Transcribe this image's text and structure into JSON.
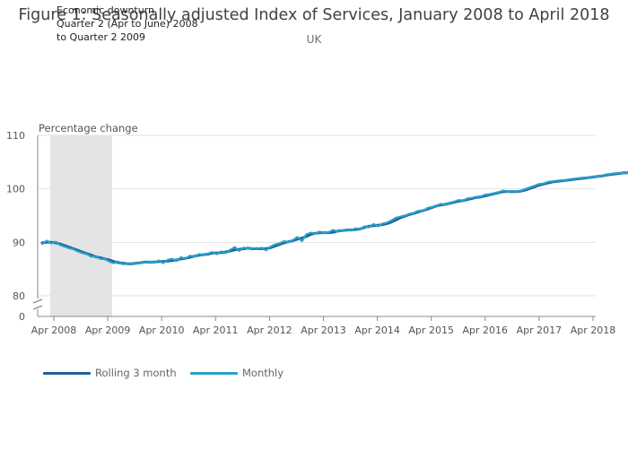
{
  "chart_data": {
    "type": "line",
    "title": "Figure 1: Seasonally adjusted Index of Services, January 2008 to April 2018",
    "subtitle": "UK",
    "ylabel": "Percentage change",
    "xlabel": "",
    "ylim": [
      0,
      110
    ],
    "axis_break": [
      0,
      80
    ],
    "yticks": [
      0,
      80,
      90,
      100,
      110
    ],
    "xticks": [
      "Apr 2008",
      "Apr 2009",
      "Apr 2010",
      "Apr 2011",
      "Apr 2012",
      "Apr 2013",
      "Apr 2014",
      "Apr 2015",
      "Apr 2016",
      "Apr 2017",
      "Apr 2018"
    ],
    "grid": true,
    "legend_position": "bottom-left",
    "shaded_region": {
      "from": "Apr 2008",
      "to": "Jun 2009",
      "label_lines": [
        "Economic downturn",
        "Quarter 2 (Apr to June) 2008",
        "to Quarter 2 2009"
      ]
    },
    "x_start": "Jan 2008",
    "x_end": "Apr 2018",
    "series": [
      {
        "name": "Rolling 3 month",
        "color": "#206095",
        "values": [
          89.9,
          90.0,
          90.0,
          89.9,
          89.7,
          89.4,
          89.1,
          88.8,
          88.5,
          88.2,
          87.9,
          87.6,
          87.3,
          87.1,
          86.9,
          86.7,
          86.4,
          86.2,
          86.1,
          86.0,
          86.0,
          86.1,
          86.2,
          86.3,
          86.3,
          86.3,
          86.4,
          86.4,
          86.5,
          86.6,
          86.7,
          86.9,
          87.0,
          87.2,
          87.4,
          87.6,
          87.7,
          87.8,
          88.0,
          88.0,
          88.1,
          88.2,
          88.4,
          88.6,
          88.7,
          88.8,
          88.9,
          88.8,
          88.8,
          88.8,
          88.8,
          89.0,
          89.3,
          89.6,
          89.9,
          90.1,
          90.3,
          90.6,
          90.8,
          91.1,
          91.5,
          91.7,
          91.8,
          91.8,
          91.8,
          91.9,
          92.1,
          92.2,
          92.3,
          92.3,
          92.4,
          92.5,
          92.8,
          93.0,
          93.1,
          93.2,
          93.3,
          93.5,
          93.8,
          94.2,
          94.6,
          94.9,
          95.2,
          95.4,
          95.7,
          95.9,
          96.2,
          96.5,
          96.8,
          97.0,
          97.1,
          97.3,
          97.5,
          97.7,
          97.8,
          98.0,
          98.2,
          98.4,
          98.5,
          98.7,
          98.9,
          99.1,
          99.3,
          99.5,
          99.5,
          99.5,
          99.5,
          99.6,
          99.8,
          100.1,
          100.4,
          100.7,
          100.9,
          101.1,
          101.3,
          101.4,
          101.5,
          101.6,
          101.7,
          101.8,
          101.9,
          102.0,
          102.1,
          102.2,
          102.3,
          102.4,
          102.6,
          102.7,
          102.8,
          102.9,
          103.0,
          103.0,
          103.1,
          103.1,
          103.2
        ]
      },
      {
        "name": "Monthly",
        "color": "#27a0cc",
        "values": [
          89.7,
          90.3,
          89.8,
          90.1,
          89.5,
          89.2,
          88.9,
          88.7,
          88.3,
          88.0,
          87.8,
          87.3,
          87.4,
          86.9,
          86.9,
          86.4,
          86.1,
          86.4,
          85.9,
          86.0,
          86.1,
          86.0,
          86.3,
          86.2,
          86.4,
          86.2,
          86.6,
          86.1,
          86.7,
          86.9,
          86.5,
          87.2,
          86.9,
          87.5,
          87.3,
          87.8,
          87.6,
          87.9,
          88.2,
          87.8,
          88.3,
          88.0,
          88.6,
          89.1,
          88.4,
          89.0,
          88.8,
          88.9,
          88.7,
          89.0,
          88.5,
          89.2,
          89.6,
          89.8,
          90.2,
          90.0,
          90.4,
          91.0,
          90.2,
          91.5,
          91.8,
          91.6,
          92.0,
          91.7,
          91.9,
          92.3,
          92.0,
          92.2,
          92.4,
          92.2,
          92.6,
          92.5,
          93.0,
          92.8,
          93.4,
          93.0,
          93.5,
          93.7,
          94.1,
          94.6,
          94.8,
          95.0,
          95.3,
          95.5,
          95.9,
          95.8,
          96.4,
          96.6,
          96.8,
          97.2,
          97.0,
          97.4,
          97.6,
          97.9,
          97.8,
          98.2,
          98.3,
          98.5,
          98.6,
          98.9,
          99.0,
          99.2,
          99.4,
          99.7,
          99.4,
          99.6,
          99.5,
          99.7,
          100.0,
          100.3,
          100.6,
          100.9,
          101.0,
          101.3,
          101.4,
          101.5,
          101.6,
          101.6,
          101.8,
          101.9,
          102.0,
          102.1,
          102.1,
          102.3,
          102.2,
          102.5,
          102.7,
          102.8,
          102.9,
          103.0,
          102.9,
          103.1,
          103.0,
          103.2,
          103.3
        ]
      }
    ]
  }
}
